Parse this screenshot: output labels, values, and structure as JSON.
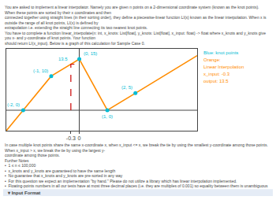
{
  "chart_data": {
    "type": "line",
    "subtitle": [
      "You are asked to implement a linear interpolator. Namely you are given n points on a 2-dimensional coordinate system (known as the knot points). When these points are sorted by their x coordinates and then",
      "connected together using straight lines (in their sorting order), they define a piecewise-linear function LI(x) known as the linear interpolation. When x is outside the range of all knot points, LI(x) is defined by",
      "extrapolation i.e. extending the straight line connecting its two nearest knot points.",
      "You have to complete a function linear_interpolate(n: int, x_knots: List[float], y_knots: List[float], x_input: float) -> float where x_knots and y_knots give you x- and y-coordinate of knot points. Your function",
      "should return LI(x_input). Below is a graph of this calculation for Sample Case 0."
    ],
    "series": [
      {
        "type": "line",
        "color": "#ff8c00",
        "x": [
          -2.6,
          -2,
          -1,
          0,
          1,
          2,
          4.2
        ],
        "values": [
          -6,
          0,
          10,
          15,
          0,
          5,
          16
        ]
      },
      {
        "type": "scatter",
        "color": "#00bcd4",
        "x": [
          -2,
          -1,
          0,
          1,
          2
        ],
        "values": [
          0,
          10,
          15,
          0,
          5
        ]
      },
      {
        "type": "line",
        "line_style": "dashed",
        "color": "#cc0000",
        "x": [
          -0.3,
          -0.3,
          0
        ],
        "values": [
          0,
          13.5,
          13.5
        ]
      }
    ],
    "annotations": [
      {
        "text": "(-2, 0)",
        "x": -2,
        "y": 0,
        "color": "#00bcd4"
      },
      {
        "text": "(-1, 10)",
        "x": -1,
        "y": 10,
        "color": "#00bcd4"
      },
      {
        "text": "(0, 15)",
        "x": 0,
        "y": 15,
        "color": "#00bcd4"
      },
      {
        "text": "(1, 0)",
        "x": 1,
        "y": 0,
        "color": "#00bcd4"
      },
      {
        "text": "(2, 5)",
        "x": 2,
        "y": 5,
        "color": "#00bcd4"
      },
      {
        "text": "13.5",
        "x": -0.3,
        "y": 13.5,
        "color": "#00bcd4"
      }
    ],
    "side_text": [
      {
        "text": "Blue: knot points",
        "color": "#00bcd4"
      },
      {
        "text": "Orange:",
        "color": "#ff8c00"
      },
      {
        "text": "Linear Interpolation",
        "color": "#ff8c00"
      },
      {
        "text": "x_input: -0.3",
        "color": "#ff8c00"
      },
      {
        "text": "output: 13.5",
        "color": "#ff8c00"
      }
    ],
    "footnote": [
      "In case multiple knot points share the same x-coordinate x, when x_input <= x, we break the tie by using the smallest y-coordinate among those points. When x_input > x, we break the tie by using the largest y-",
      "coordinate among those points.",
      "Further Notes",
      "•  1 ≤ n ≤ 100,000",
      "•  x_knots and y_knots are guaranteed to have the same length",
      "•  No guarantee that x_knots and y_knots are pre-sorted in any way",
      "•  For this question we expect an implementation \"by hand.\" Please do not utilize a library which has linear interpolation implemented.",
      "•  Floating-points numbers in all our tests have at most three decimal places (i.e. they are multiples of 0.001) so equality between them is unambiguous"
    ],
    "section": "▾ Input Format",
    "xlim": [
      -2.6,
      4.2
    ],
    "ylim": [
      -6,
      18
    ],
    "xticks": [
      -0.3,
      0
    ],
    "grid": false,
    "tick_labels": "x"
  }
}
